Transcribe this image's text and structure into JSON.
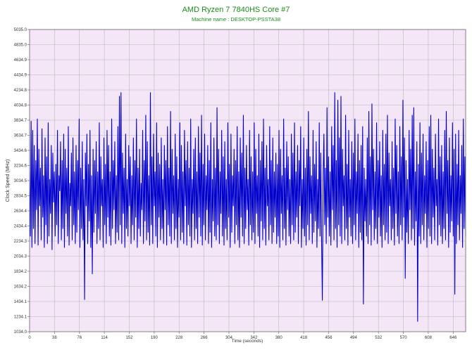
{
  "chart_data": {
    "type": "line",
    "title": "AMD Ryzen 7 7840HS Core #7",
    "subtitle": "Machine name : DESKTOP-PSSTA38",
    "xlabel": "Time (seconds)",
    "ylabel": "Clock Speed (MHz)",
    "xlim": [
      0,
      665
    ],
    "ylim": [
      1034.0,
      5035.0
    ],
    "x_ticks": [
      "0",
      "38",
      "76",
      "114",
      "152",
      "190",
      "228",
      "266",
      "304",
      "342",
      "380",
      "418",
      "456",
      "494",
      "532",
      "570",
      "608",
      "646"
    ],
    "y_ticks": [
      "1034.0",
      "1234.1",
      "1434.1",
      "1634.2",
      "1834.2",
      "2034.3",
      "2234.3",
      "2434.4",
      "2634.4",
      "2834.5",
      "3034.5",
      "3234.6",
      "3434.6",
      "3634.7",
      "3834.7",
      "4034.8",
      "4234.8",
      "4434.9",
      "4634.9",
      "4835.0",
      "5035.0"
    ],
    "grid": true,
    "colors": {
      "title": "#1a8c1a",
      "plot_background": "#f4e6f7",
      "grid": "#b8b8b8",
      "series": "#0000cc"
    },
    "series": [
      {
        "values": [
          3150,
          2300,
          3820,
          2150,
          3700,
          2400,
          3500,
          2200,
          3300,
          2650,
          3850,
          2180,
          3450,
          2700,
          3200,
          2250,
          3720,
          2550,
          3100,
          2150,
          3600,
          2450,
          3350,
          2200,
          3800,
          2300,
          3050,
          2600,
          3500,
          2120,
          3400,
          2750,
          3150,
          2300,
          3250,
          2450,
          3700,
          2200,
          3100,
          2900,
          3550,
          2250,
          3300,
          2400,
          3650,
          2150,
          3450,
          2600,
          3200,
          2300,
          3750,
          2180,
          3000,
          2700,
          3400,
          2250,
          3600,
          2450,
          3150,
          2200,
          3500,
          2350,
          3300,
          2650,
          3850,
          2150,
          3200,
          2400,
          3550,
          2250,
          3050,
          1460,
          3400,
          2700,
          3650,
          2200,
          3250,
          2500,
          3700,
          2150,
          3100,
          1800,
          3450,
          2350,
          3300,
          2600,
          3550,
          2200,
          3150,
          2400,
          3800,
          2250,
          3350,
          2700,
          3050,
          2150,
          3600,
          2450,
          3250,
          2200,
          3700,
          2550,
          3500,
          2300,
          3150,
          2180,
          3850,
          2400,
          3300,
          2650,
          3550,
          2200,
          3100,
          2350,
          3750,
          2250,
          4150,
          2450,
          4200,
          2200,
          3400,
          2600,
          3200,
          2150,
          3650,
          2400,
          3050,
          2300,
          3500,
          2700,
          3350,
          2200,
          3100,
          2450,
          3600,
          2250,
          3300,
          2550,
          3850,
          2150,
          3200,
          2400,
          3450,
          2300,
          3000,
          2650,
          3700,
          2200,
          3300,
          2500,
          3900,
          2250,
          3550,
          2350,
          3100,
          2180,
          4200,
          2450,
          3350,
          2200,
          3650,
          2700,
          3150,
          2300,
          3800,
          2150,
          3400,
          2550,
          3250,
          2250,
          3600,
          2400,
          3050,
          2200,
          3500,
          2650,
          3300,
          2180,
          3750,
          2450,
          3200,
          2300,
          3950,
          2200,
          3450,
          2600,
          3100,
          2250,
          3650,
          2400,
          3350,
          2150,
          3050,
          2550,
          3800,
          2250,
          3500,
          2350,
          3150,
          2200,
          3700,
          2700,
          3300,
          2180,
          3550,
          2450,
          3200,
          2300,
          3850,
          2150,
          3050,
          2600,
          3450,
          2250,
          3600,
          2400,
          3150,
          2200,
          3750,
          2550,
          3400,
          2300,
          3900,
          2180,
          3250,
          2450,
          3650,
          2250,
          3100,
          2650,
          3500,
          2200,
          3300,
          2350,
          3800,
          2150,
          3050,
          2500,
          3600,
          2300,
          3200,
          2250,
          4000,
          2450,
          3450,
          2200,
          3150,
          2600,
          3700,
          2300,
          3350,
          2180,
          3550,
          2400,
          3050,
          2250,
          3800,
          2550,
          3250,
          2150,
          3650,
          2350,
          3100,
          2700,
          3450,
          2200,
          3300,
          2450,
          3750,
          2250,
          3150,
          2150,
          3600,
          2550,
          3400,
          2300,
          3900,
          2200,
          3200,
          2400,
          3500,
          2650,
          3050,
          2180,
          3700,
          2450,
          3350,
          2250,
          3150,
          2350,
          3800,
          2200,
          3450,
          2600,
          3100,
          2300,
          3650,
          2150,
          3300,
          2500,
          3550,
          2250,
          3850,
          2400,
          3200,
          2180,
          3500,
          2700,
          3050,
          2250,
          3750,
          2450,
          3300,
          2200,
          3600,
          2350,
          3150,
          2550,
          3400,
          2200,
          3250,
          2300,
          3700,
          2150,
          3450,
          2600,
          3100,
          2250,
          3850,
          2400,
          3200,
          2180,
          3550,
          2650,
          3350,
          2300,
          3050,
          2200,
          3650,
          2450,
          3400,
          2250,
          3800,
          2350,
          3150,
          2550,
          3500,
          2200,
          3300,
          2700,
          3750,
          2150,
          3050,
          2400,
          3600,
          2300,
          3200,
          2180,
          3450,
          2450,
          3950,
          2250,
          3350,
          2600,
          3100,
          2200,
          3700,
          2350,
          3250,
          2500,
          3550,
          2150,
          3050,
          2400,
          3800,
          2300,
          3400,
          2250,
          1450,
          3100,
          3650,
          2450,
          3200,
          2200,
          4000,
          2550,
          3350,
          2300,
          3150,
          2180,
          3750,
          2650,
          3500,
          2250,
          4200,
          2400,
          3300,
          2150,
          4100,
          2450,
          3600,
          2300,
          4150,
          2200,
          3450,
          2700,
          3100,
          2250,
          3900,
          2400,
          3250,
          2180,
          3700,
          2550,
          3050,
          2300,
          3550,
          2200,
          3400,
          2450,
          3850,
          2250,
          3150,
          2600,
          3650,
          2150,
          3300,
          2350,
          3500,
          2250,
          3750,
          1400,
          3200,
          2500,
          3050,
          2300,
          3600,
          2200,
          3950,
          2450,
          3350,
          2180,
          4050,
          2650,
          3450,
          2250,
          3150,
          2400,
          3800,
          2200,
          3300,
          2550,
          3550,
          2300,
          3100,
          2150,
          3700,
          2450,
          3250,
          2250,
          3650,
          2350,
          3900,
          2200,
          3400,
          2700,
          3050,
          2250,
          3550,
          2400,
          3200,
          2180,
          3850,
          2600,
          3500,
          2300,
          3150,
          2200,
          3750,
          2450,
          3350,
          2250,
          4100,
          2550,
          3600,
          1740,
          3300,
          2350,
          3050,
          2200,
          3700,
          2650,
          3450,
          2250,
          3900,
          2400,
          4000,
          2180,
          3150,
          2500,
          3550,
          1170,
          3250,
          2300,
          3800,
          2200,
          3400,
          2450,
          3650,
          2250,
          3100,
          2600,
          3550,
          2150,
          3300,
          2400,
          3750,
          2300,
          3900,
          2200,
          3450,
          2550,
          3200,
          2250,
          3650,
          2700,
          3050,
          2180,
          3850,
          2450,
          3350,
          2300,
          3500,
          2200,
          3150,
          2400,
          3700,
          2250,
          3950,
          2600,
          3300,
          2150,
          3600,
          2350,
          3100,
          2500,
          3800,
          2300,
          3450,
          1530,
          3650,
          2200,
          3250,
          2450,
          3700,
          2250,
          3100,
          2600,
          3500,
          2150,
          3850,
          2400,
          3350,
          2300
        ]
      }
    ]
  }
}
